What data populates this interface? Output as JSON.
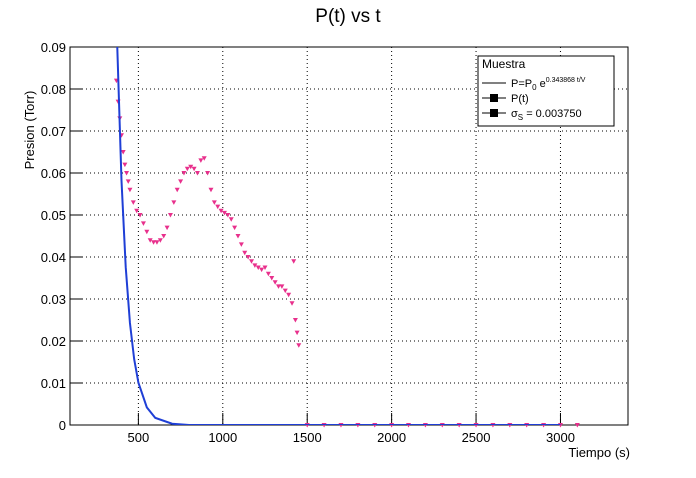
{
  "chart_data": {
    "type": "scatter-fit",
    "title": "P(t) vs t",
    "x_label": "Tiempo (s)",
    "y_label": "Presion (Torr)",
    "xlim": [
      95,
      3400
    ],
    "ylim": [
      0,
      0.09
    ],
    "xticks": [
      500,
      1000,
      1500,
      2000,
      2500,
      3000
    ],
    "yticks": [
      0,
      0.01,
      0.02,
      0.03,
      0.04,
      0.05,
      0.06,
      0.07,
      0.08,
      0.09
    ],
    "grid": true,
    "legend": {
      "title": "Muestra",
      "position": "upper right",
      "entries": [
        [
          "P=P",
          "0",
          " e",
          "0.343868 t/V"
        ],
        [
          "P(t)"
        ],
        [
          "σ",
          "S",
          " = 0.003750"
        ]
      ]
    },
    "points": {
      "color": "#e8308c",
      "x": [
        370,
        380,
        390,
        400,
        410,
        420,
        430,
        440,
        450,
        470,
        490,
        510,
        530,
        550,
        570,
        590,
        610,
        630,
        650,
        670,
        690,
        710,
        730,
        750,
        770,
        790,
        810,
        830,
        850,
        870,
        890,
        910,
        930,
        950,
        970,
        990,
        1010,
        1030,
        1050,
        1070,
        1090,
        1110,
        1130,
        1150,
        1170,
        1190,
        1210,
        1230,
        1250,
        1270,
        1290,
        1310,
        1330,
        1350,
        1370,
        1390,
        1410,
        1420,
        1430,
        1440,
        1450,
        1500,
        1600,
        1700,
        1800,
        1900,
        2000,
        2100,
        2200,
        2300,
        2400,
        2500,
        2600,
        2700,
        2800,
        2900,
        3000,
        3100
      ],
      "values": [
        0.082,
        0.077,
        0.073,
        0.069,
        0.065,
        0.062,
        0.06,
        0.058,
        0.056,
        0.053,
        0.051,
        0.05,
        0.048,
        0.046,
        0.044,
        0.0435,
        0.0435,
        0.044,
        0.045,
        0.047,
        0.05,
        0.053,
        0.056,
        0.058,
        0.06,
        0.061,
        0.0615,
        0.061,
        0.06,
        0.063,
        0.0635,
        0.06,
        0.056,
        0.053,
        0.052,
        0.051,
        0.0505,
        0.05,
        0.049,
        0.047,
        0.045,
        0.043,
        0.041,
        0.04,
        0.039,
        0.038,
        0.0375,
        0.037,
        0.0375,
        0.036,
        0.035,
        0.034,
        0.033,
        0.033,
        0.032,
        0.031,
        0.029,
        0.039,
        0.025,
        0.022,
        0.019,
        0,
        0,
        0,
        0,
        0,
        0,
        0,
        0,
        0,
        0,
        0,
        0,
        0,
        0,
        0,
        0,
        0
      ]
    },
    "fit": {
      "color": "#1f3fd6",
      "x": [
        375,
        400,
        425,
        450,
        475,
        500,
        550,
        600,
        700,
        800,
        1500,
        2000,
        3000
      ],
      "values": [
        0.09,
        0.0582,
        0.0376,
        0.0243,
        0.0157,
        0.0101,
        0.0042,
        0.0017,
        0.0003,
        0,
        0,
        0,
        0
      ]
    }
  }
}
